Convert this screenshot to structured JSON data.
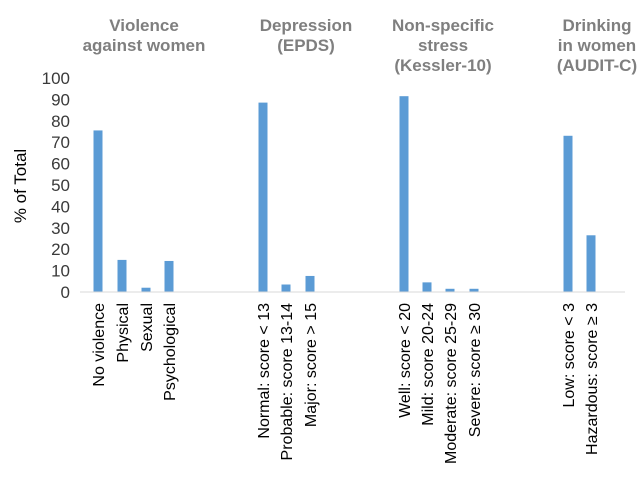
{
  "chart_data": {
    "type": "bar",
    "title": "",
    "xlabel": "",
    "ylabel": "% of Total",
    "ylim": [
      0,
      100
    ],
    "yticks": [
      0,
      10,
      20,
      30,
      40,
      50,
      60,
      70,
      80,
      90,
      100
    ],
    "grid": false,
    "legend": "none",
    "bar_color": "#5b9bd5",
    "groups": [
      {
        "title": [
          "Violence",
          "against women"
        ],
        "categories": [
          "No violence",
          "Physical",
          "Sexual",
          "Psychological"
        ],
        "values": [
          75.5,
          15,
          2,
          14.5
        ]
      },
      {
        "title": [
          "Depression",
          "(EPDS)"
        ],
        "categories": [
          "Normal: score < 13",
          "Probable: score 13-14",
          "Major:  score > 15"
        ],
        "values": [
          88.5,
          3.5,
          7.5
        ]
      },
      {
        "title": [
          "Non-specific",
          "stress",
          "(Kessler-10)"
        ],
        "categories": [
          "Well: score < 20",
          "Mild: score 20-24",
          "Moderate: score 25-29",
          "Severe: score ≥ 30"
        ],
        "values": [
          91.5,
          4.5,
          1.5,
          1.5
        ]
      },
      {
        "title": [
          "Drinking",
          "in women",
          "(AUDIT-C)"
        ],
        "categories": [
          "Low: score < 3",
          "Hazardous: score ≥ 3"
        ],
        "values": [
          73,
          26.5
        ]
      }
    ]
  }
}
